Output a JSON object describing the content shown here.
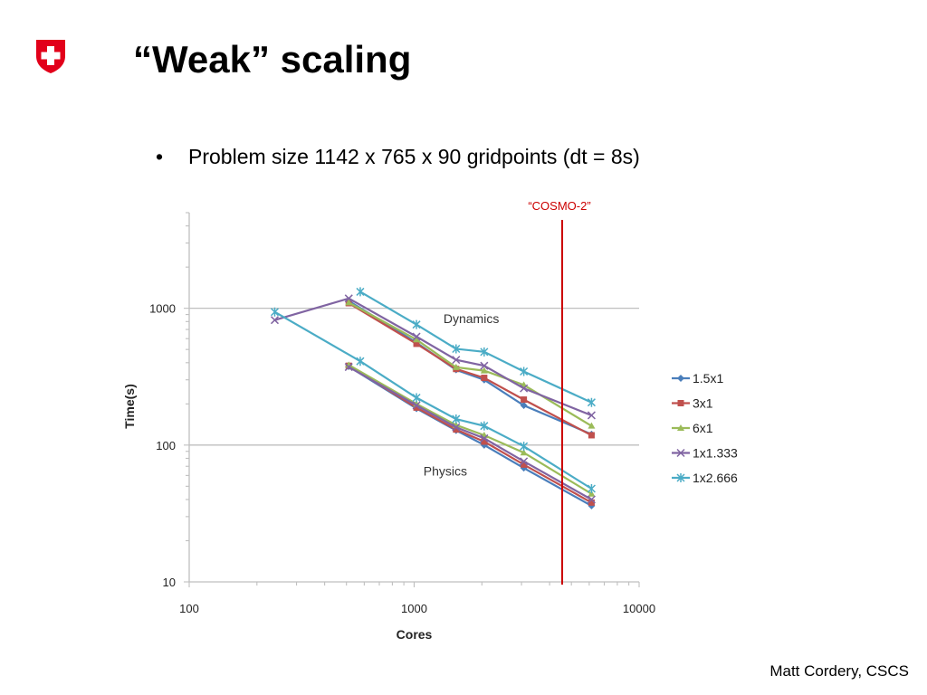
{
  "slide": {
    "title": "“Weak” scaling",
    "bullet": "Problem size 1142 x 765 x 90 gridpoints (dt = 8s)",
    "footer": "Matt Cordery, CSCS"
  },
  "colors": {
    "logo": "#e2001a",
    "marker_line": "#cc0000"
  },
  "chart_data": {
    "type": "line",
    "xscale": "log",
    "yscale": "log",
    "xlim": [
      100,
      10000
    ],
    "ylim": [
      10,
      5000
    ],
    "xlabel": "Cores",
    "ylabel": "Time(s)",
    "xticks": [
      "100",
      "1000",
      "10000"
    ],
    "yticks": [
      "10",
      "100",
      "1000"
    ],
    "grid": "horizontal major",
    "legend": "right",
    "vline": {
      "x": 4550,
      "label": "“COSMO-2”",
      "color": "#cc0000"
    },
    "annotations": [
      {
        "text": "Dynamics",
        "x": 1350,
        "y": 780
      },
      {
        "text": "Physics",
        "x": 1100,
        "y": 60
      }
    ],
    "series": [
      {
        "name": "1.5x1",
        "color": "#4a7ebb",
        "marker": "diamond",
        "dynamics": [
          [
            512,
            1130
          ],
          [
            1024,
            560
          ],
          [
            1536,
            355
          ],
          [
            2048,
            300
          ],
          [
            3072,
            195
          ],
          [
            6144,
            120
          ]
        ],
        "physics": [
          [
            512,
            375
          ],
          [
            1024,
            185
          ],
          [
            1536,
            128
          ],
          [
            2048,
            100
          ],
          [
            3072,
            68
          ],
          [
            6144,
            36
          ]
        ]
      },
      {
        "name": "3x1",
        "color": "#c0504d",
        "marker": "square",
        "dynamics": [
          [
            512,
            1090
          ],
          [
            1024,
            550
          ],
          [
            1536,
            360
          ],
          [
            2048,
            310
          ],
          [
            3072,
            215
          ],
          [
            6144,
            118
          ]
        ],
        "physics": [
          [
            512,
            380
          ],
          [
            1024,
            188
          ],
          [
            1536,
            130
          ],
          [
            2048,
            106
          ],
          [
            3072,
            72
          ],
          [
            6144,
            38
          ]
        ]
      },
      {
        "name": "6x1",
        "color": "#9bbb59",
        "marker": "triangle",
        "dynamics": [
          [
            512,
            1100
          ],
          [
            1024,
            590
          ],
          [
            1536,
            370
          ],
          [
            2048,
            350
          ],
          [
            3072,
            275
          ],
          [
            6144,
            138
          ]
        ],
        "physics": [
          [
            512,
            385
          ],
          [
            1024,
            200
          ],
          [
            1536,
            140
          ],
          [
            2048,
            118
          ],
          [
            3072,
            88
          ],
          [
            6144,
            44
          ]
        ]
      },
      {
        "name": "1x1.333",
        "color": "#8064a2",
        "marker": "x",
        "dynamics": [
          [
            240,
            820
          ],
          [
            512,
            1180
          ],
          [
            1024,
            620
          ],
          [
            1536,
            420
          ],
          [
            2048,
            380
          ],
          [
            3072,
            260
          ],
          [
            6144,
            165
          ]
        ],
        "physics": [
          [
            512,
            372
          ],
          [
            1024,
            195
          ],
          [
            1536,
            135
          ],
          [
            2048,
            112
          ],
          [
            3072,
            76
          ],
          [
            6144,
            40
          ]
        ]
      },
      {
        "name": "1x2.666",
        "color": "#4bacc6",
        "marker": "star",
        "dynamics": [
          [
            576,
            1320
          ],
          [
            1024,
            760
          ],
          [
            1536,
            505
          ],
          [
            2048,
            480
          ],
          [
            3072,
            345
          ],
          [
            6144,
            205
          ]
        ],
        "physics": [
          [
            240,
            940
          ],
          [
            576,
            410
          ],
          [
            1024,
            222
          ],
          [
            1536,
            155
          ],
          [
            2048,
            138
          ],
          [
            3072,
            98
          ],
          [
            6144,
            48
          ]
        ]
      }
    ]
  }
}
